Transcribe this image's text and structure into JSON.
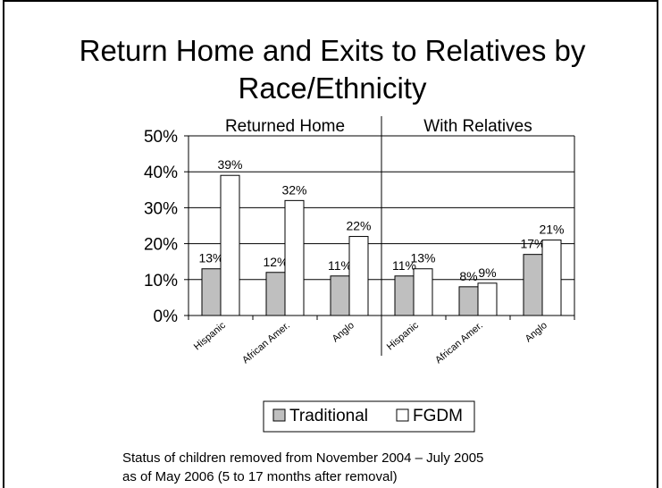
{
  "title_line1": "Return Home and Exits to Relatives by",
  "title_line2": "Race/Ethnicity",
  "footnote_line1": "Status of children removed from November 2004 – July 2005",
  "footnote_line2": "as of May 2006 (5 to 17 months after removal)",
  "colors": {
    "traditional": "#bfbfbf",
    "fgdm": "#ffffff",
    "stroke": "#000000"
  },
  "chart_data": {
    "type": "bar",
    "groups": [
      "Returned Home",
      "With Relatives"
    ],
    "categories": [
      "Hispanic",
      "African Amer.",
      "Anglo",
      "Hispanic",
      "African Amer.",
      "Anglo"
    ],
    "series": [
      {
        "name": "Traditional",
        "values": [
          13,
          12,
          11,
          11,
          8,
          17
        ],
        "labels": [
          "13%",
          "12%",
          "11%",
          "11%",
          "8%",
          "17%"
        ]
      },
      {
        "name": "FGDM",
        "values": [
          39,
          32,
          22,
          13,
          9,
          21
        ],
        "labels": [
          "39%",
          "32%",
          "22%",
          "13%",
          "9%",
          "21%"
        ]
      }
    ],
    "ylim": [
      0,
      50
    ],
    "yticks": [
      0,
      10,
      20,
      30,
      40,
      50
    ],
    "ytick_labels": [
      "0%",
      "10%",
      "20%",
      "30%",
      "40%",
      "50%"
    ],
    "grid": true,
    "legend": "bottom"
  }
}
